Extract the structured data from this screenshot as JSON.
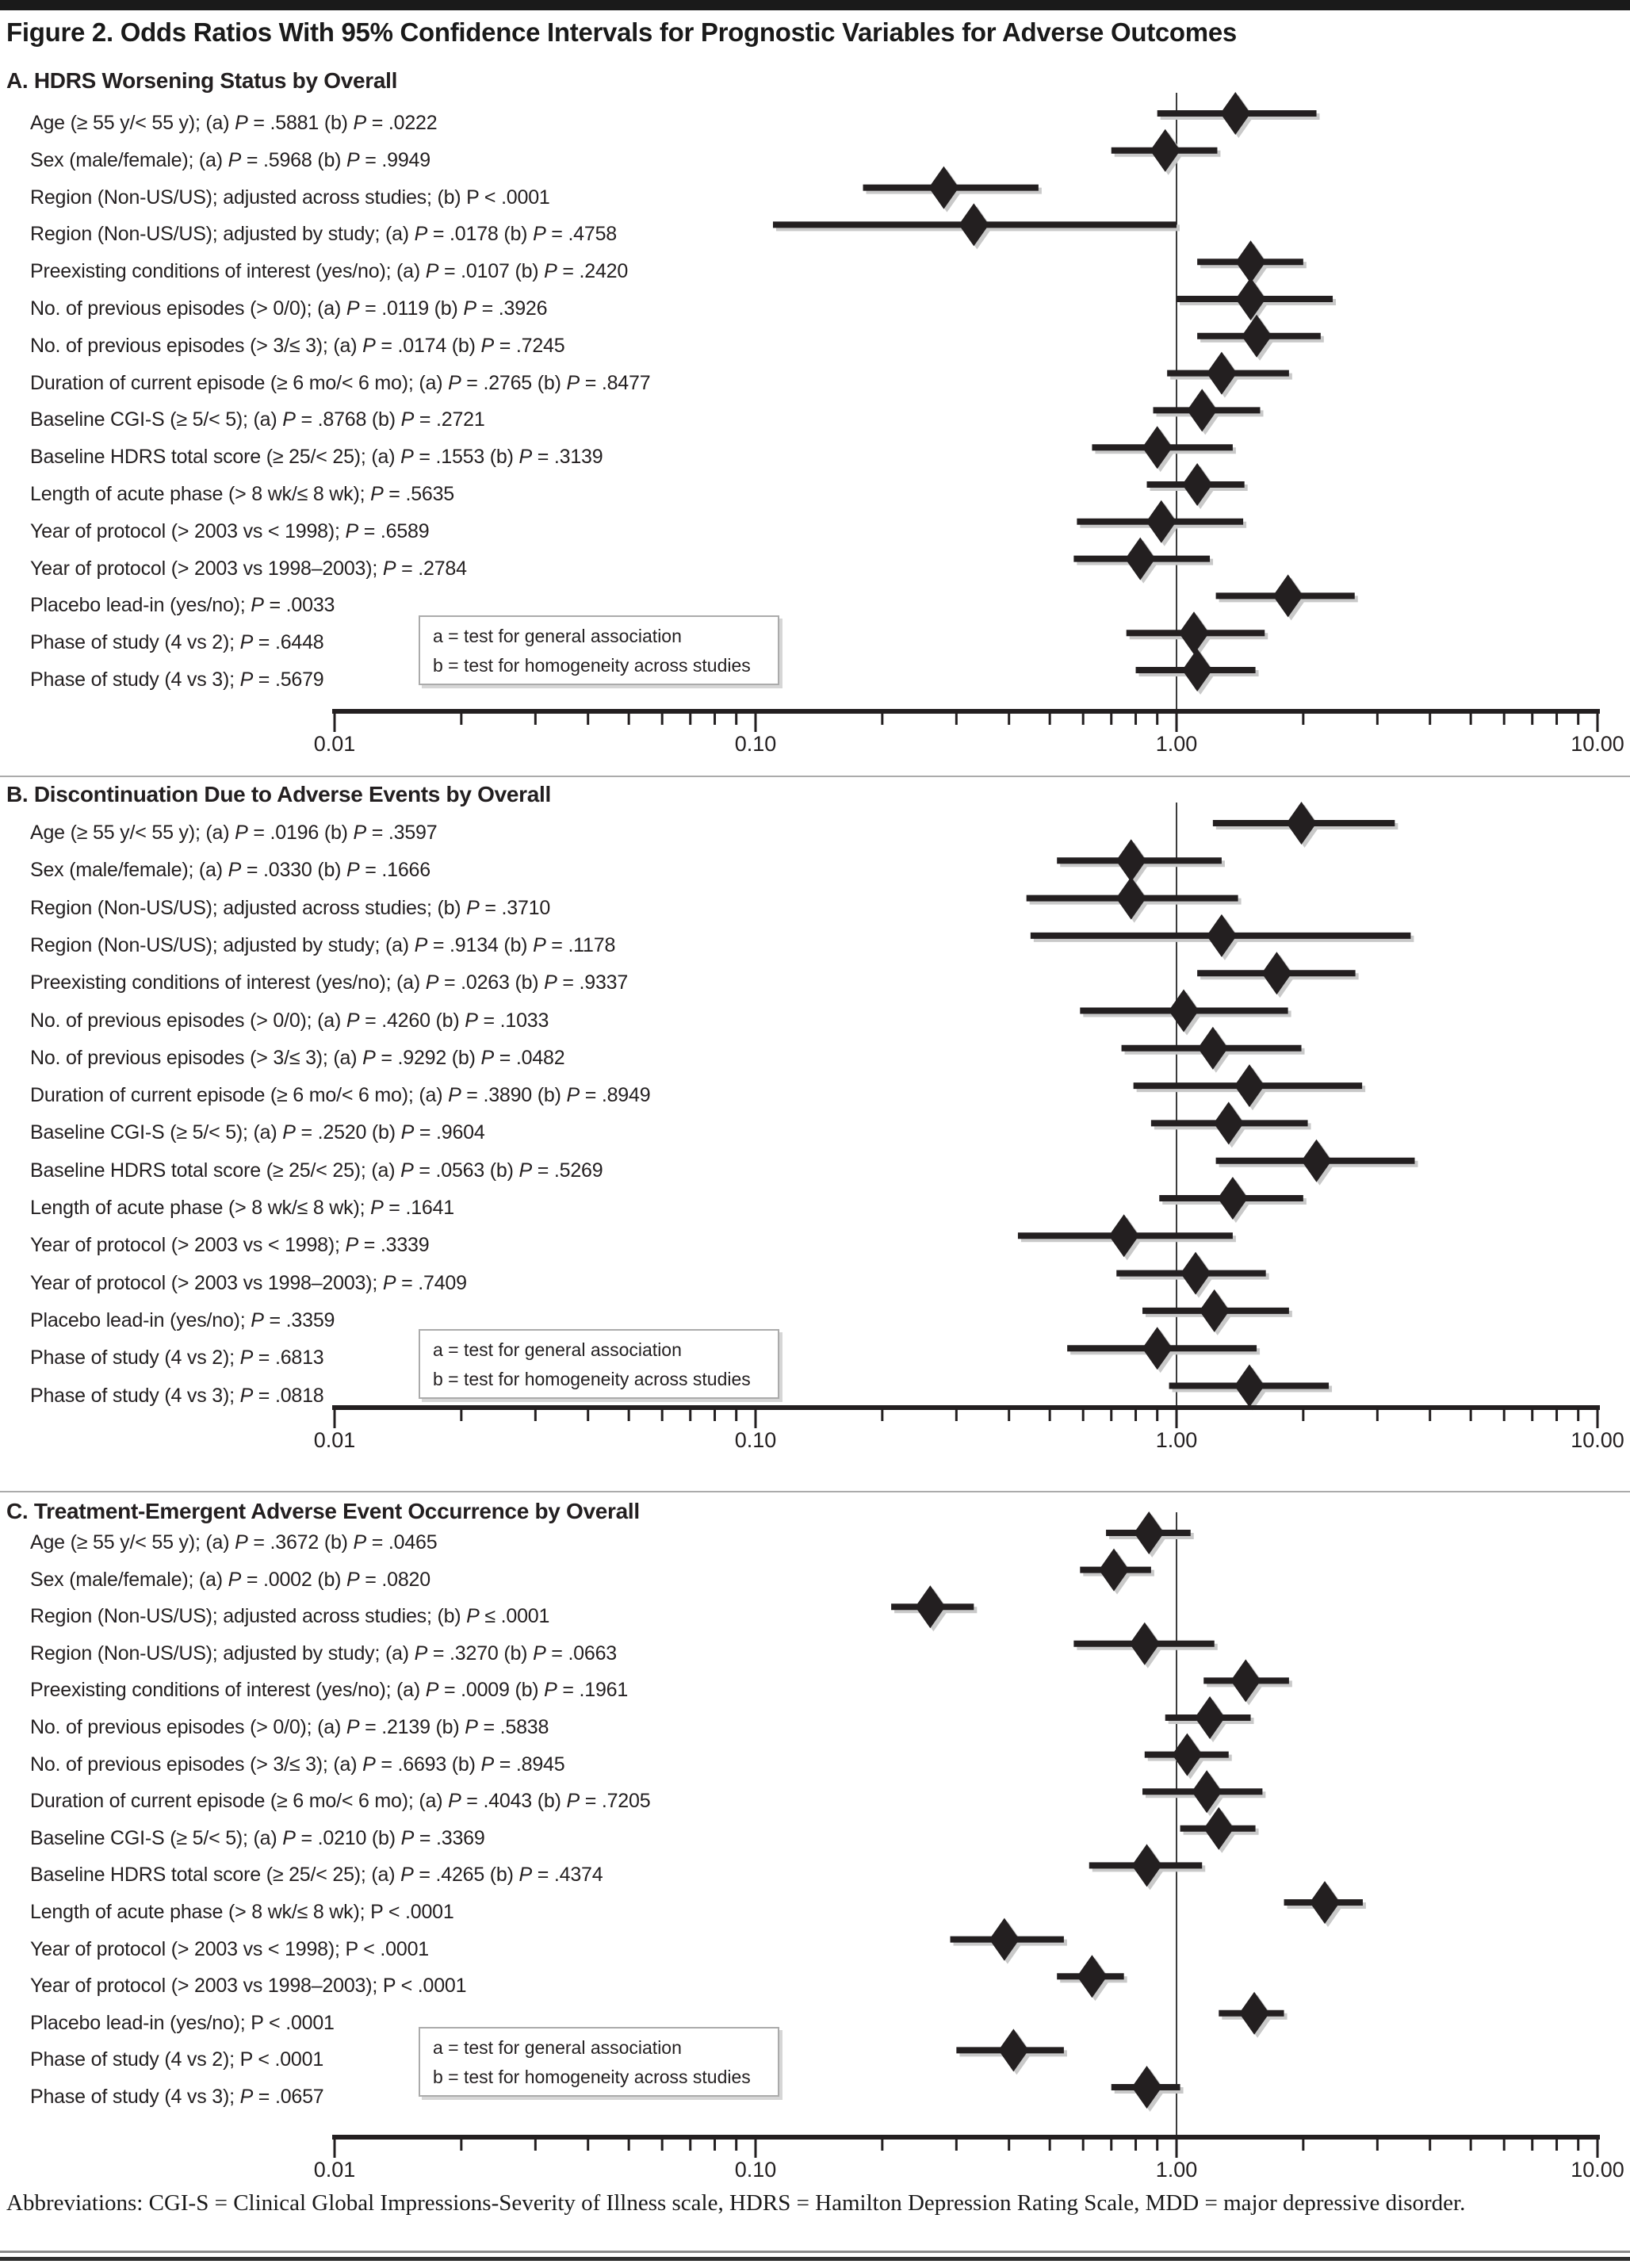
{
  "figure": {
    "title": "Figure 2. Odds Ratios With 95% Confidence Intervals for Prognostic Variables for Adverse Outcomes",
    "footer": "Abbreviations: CGI-S = Clinical Global Impressions-Severity of Illness scale, HDRS = Hamilton Depression Rating Scale, MDD = major depressive disorder."
  },
  "legend": {
    "a": "a = test for general association",
    "b": "b = test for homogeneity across studies"
  },
  "axis": {
    "scale": "log",
    "range": [
      0.01,
      10
    ],
    "tick_labels": [
      "0.01",
      "0.10",
      "1.00",
      "10.00"
    ],
    "tick_values": [
      0.01,
      0.1,
      1,
      10
    ],
    "reference_line": 1.0
  },
  "colors": {
    "marker": "#231f20",
    "ci_line": "#231f20",
    "shadow": "#c9c9c9",
    "reference": "#3c3c3c",
    "divider": "#ababab"
  },
  "chart_data": [
    {
      "type": "scatter",
      "variant": "forest-plot",
      "title": "A. HDRS Worsening Status by Overall",
      "xlabel": "",
      "x_scale": "log",
      "xlim": [
        0.01,
        10
      ],
      "reference_line": 1.0,
      "rows": [
        {
          "label": "Age (≥ 55 y/< 55 y); (a) P = .5881 (b) P = .0222",
          "or": 1.38,
          "ci_low": 0.9,
          "ci_high": 2.15
        },
        {
          "label": "Sex (male/female); (a) P = .5968 (b) P = .9949",
          "or": 0.94,
          "ci_low": 0.7,
          "ci_high": 1.25
        },
        {
          "label": "Region (Non-US/US); adjusted across studies; (b) P < .0001",
          "or": 0.28,
          "ci_low": 0.18,
          "ci_high": 0.47
        },
        {
          "label": "Region (Non-US/US); adjusted by study; (a) P = .0178 (b) P = .4758",
          "or": 0.33,
          "ci_low": 0.11,
          "ci_high": 1.0
        },
        {
          "label": "Preexisting conditions of interest (yes/no); (a) P = .0107 (b) P = .2420",
          "or": 1.5,
          "ci_low": 1.12,
          "ci_high": 2.0
        },
        {
          "label": "No. of previous episodes (> 0/0); (a) P = .0119 (b) P = .3926",
          "or": 1.5,
          "ci_low": 1.0,
          "ci_high": 2.35
        },
        {
          "label": "No. of previous episodes (> 3/≤ 3); (a) P = .0174 (b) P = .7245",
          "or": 1.55,
          "ci_low": 1.12,
          "ci_high": 2.2
        },
        {
          "label": "Duration of current episode (≥ 6 mo/< 6 mo); (a) P = .2765 (b) P = .8477",
          "or": 1.28,
          "ci_low": 0.95,
          "ci_high": 1.85
        },
        {
          "label": "Baseline CGI-S (≥ 5/< 5); (a) P = .8768 (b) P = .2721",
          "or": 1.15,
          "ci_low": 0.88,
          "ci_high": 1.58
        },
        {
          "label": "Baseline HDRS total score (≥ 25/< 25); (a) P = .1553 (b) P = .3139",
          "or": 0.9,
          "ci_low": 0.63,
          "ci_high": 1.36
        },
        {
          "label": "Length of acute phase (> 8 wk/≤ 8 wk); P = .5635",
          "or": 1.12,
          "ci_low": 0.85,
          "ci_high": 1.45
        },
        {
          "label": "Year of protocol (> 2003 vs < 1998); P = .6589",
          "or": 0.92,
          "ci_low": 0.58,
          "ci_high": 1.44
        },
        {
          "label": "Year of protocol (> 2003 vs 1998–2003); P = .2784",
          "or": 0.82,
          "ci_low": 0.57,
          "ci_high": 1.2
        },
        {
          "label": "Placebo lead-in (yes/no); P = .0033",
          "or": 1.84,
          "ci_low": 1.24,
          "ci_high": 2.65
        },
        {
          "label": "Phase of study (4 vs 2); P = .6448",
          "or": 1.1,
          "ci_low": 0.76,
          "ci_high": 1.62
        },
        {
          "label": "Phase of study (4 vs 3); P = .5679",
          "or": 1.12,
          "ci_low": 0.8,
          "ci_high": 1.54
        }
      ]
    },
    {
      "type": "scatter",
      "variant": "forest-plot",
      "title": "B. Discontinuation Due to Adverse Events by Overall",
      "xlabel": "",
      "x_scale": "log",
      "xlim": [
        0.01,
        10
      ],
      "reference_line": 1.0,
      "rows": [
        {
          "label": "Age (≥ 55 y/< 55 y); (a) P = .0196 (b) P = .3597",
          "or": 1.98,
          "ci_low": 1.22,
          "ci_high": 3.3
        },
        {
          "label": "Sex (male/female); (a) P = .0330 (b) P = .1666",
          "or": 0.78,
          "ci_low": 0.52,
          "ci_high": 1.28
        },
        {
          "label": "Region (Non-US/US); adjusted across studies; (b) P = .3710",
          "or": 0.78,
          "ci_low": 0.44,
          "ci_high": 1.4
        },
        {
          "label": "Region (Non-US/US); adjusted by study; (a) P = .9134 (b) P = .1178",
          "or": 1.28,
          "ci_low": 0.45,
          "ci_high": 3.6
        },
        {
          "label": "Preexisting conditions of interest (yes/no); (a) P = .0263 (b) P = .9337",
          "or": 1.73,
          "ci_low": 1.12,
          "ci_high": 2.66
        },
        {
          "label": "No. of previous episodes (> 0/0); (a) P = .4260 (b) P = .1033",
          "or": 1.04,
          "ci_low": 0.59,
          "ci_high": 1.84
        },
        {
          "label": "No. of previous episodes (> 3/≤ 3); (a) P = .9292 (b) P = .0482",
          "or": 1.22,
          "ci_low": 0.74,
          "ci_high": 1.98
        },
        {
          "label": "Duration of current episode (≥ 6 mo/< 6 mo); (a) P = .3890 (b) P = .8949",
          "or": 1.49,
          "ci_low": 0.79,
          "ci_high": 2.76
        },
        {
          "label": "Baseline CGI-S (≥ 5/< 5); (a) P = .2520 (b) P = .9604",
          "or": 1.33,
          "ci_low": 0.87,
          "ci_high": 2.05
        },
        {
          "label": "Baseline HDRS total score (≥ 25/< 25); (a) P = .0563 (b) P = .5269",
          "or": 2.15,
          "ci_low": 1.24,
          "ci_high": 3.68
        },
        {
          "label": "Length of acute phase (> 8 wk/≤ 8 wk); P = .1641",
          "or": 1.36,
          "ci_low": 0.91,
          "ci_high": 2.0
        },
        {
          "label": "Year of protocol (> 2003 vs < 1998); P = .3339",
          "or": 0.75,
          "ci_low": 0.42,
          "ci_high": 1.36
        },
        {
          "label": "Year of protocol (> 2003 vs 1998–2003); P = .7409",
          "or": 1.11,
          "ci_low": 0.72,
          "ci_high": 1.63
        },
        {
          "label": "Placebo lead-in (yes/no); P = .3359",
          "or": 1.23,
          "ci_low": 0.83,
          "ci_high": 1.85
        },
        {
          "label": "Phase of study (4 vs 2); P = .6813",
          "or": 0.9,
          "ci_low": 0.55,
          "ci_high": 1.55
        },
        {
          "label": "Phase of study (4 vs 3); P = .0818",
          "or": 1.49,
          "ci_low": 0.96,
          "ci_high": 2.3
        }
      ]
    },
    {
      "type": "scatter",
      "variant": "forest-plot",
      "title": "C. Treatment-Emergent Adverse Event Occurrence by Overall",
      "xlabel": "",
      "x_scale": "log",
      "xlim": [
        0.01,
        10
      ],
      "reference_line": 1.0,
      "rows": [
        {
          "label": "Age (≥ 55 y/< 55 y); (a) P = .3672 (b) P = .0465",
          "or": 0.86,
          "ci_low": 0.68,
          "ci_high": 1.08
        },
        {
          "label": "Sex (male/female); (a) P = .0002 (b) P = .0820",
          "or": 0.71,
          "ci_low": 0.59,
          "ci_high": 0.87
        },
        {
          "label": "Region (Non-US/US); adjusted across studies; (b) P ≤ .0001",
          "or": 0.26,
          "ci_low": 0.21,
          "ci_high": 0.33
        },
        {
          "label": "Region (Non-US/US); adjusted by study; (a) P = .3270 (b) P = .0663",
          "or": 0.84,
          "ci_low": 0.57,
          "ci_high": 1.23
        },
        {
          "label": "Preexisting conditions of interest (yes/no); (a) P = .0009 (b) P = .1961",
          "or": 1.46,
          "ci_low": 1.16,
          "ci_high": 1.85
        },
        {
          "label": "No. of previous episodes (> 0/0); (a) P = .2139 (b) P = .5838",
          "or": 1.2,
          "ci_low": 0.94,
          "ci_high": 1.5
        },
        {
          "label": "No. of previous episodes (> 3/≤ 3); (a) P = .6693 (b) P = .8945",
          "or": 1.06,
          "ci_low": 0.84,
          "ci_high": 1.33
        },
        {
          "label": "Duration of current episode (≥ 6 mo/< 6 mo); (a) P = .4043 (b) P = .7205",
          "or": 1.18,
          "ci_low": 0.83,
          "ci_high": 1.6
        },
        {
          "label": "Baseline CGI-S (≥ 5/< 5); (a) P = .0210 (b) P = .3369",
          "or": 1.26,
          "ci_low": 1.02,
          "ci_high": 1.54
        },
        {
          "label": "Baseline HDRS total score (≥ 25/< 25); (a) P = .4265 (b) P = .4374",
          "or": 0.85,
          "ci_low": 0.62,
          "ci_high": 1.15
        },
        {
          "label": "Length of acute phase (> 8 wk/≤ 8 wk); P < .0001",
          "or": 2.25,
          "ci_low": 1.8,
          "ci_high": 2.77
        },
        {
          "label": "Year of protocol (> 2003 vs < 1998); P < .0001",
          "or": 0.39,
          "ci_low": 0.29,
          "ci_high": 0.54
        },
        {
          "label": "Year of protocol (> 2003 vs 1998–2003); P < .0001",
          "or": 0.63,
          "ci_low": 0.52,
          "ci_high": 0.75
        },
        {
          "label": "Placebo lead-in (yes/no); P < .0001",
          "or": 1.53,
          "ci_low": 1.26,
          "ci_high": 1.8
        },
        {
          "label": "Phase of study (4 vs 2); P < .0001",
          "or": 0.41,
          "ci_low": 0.3,
          "ci_high": 0.54
        },
        {
          "label": "Phase of study (4 vs 3); P = .0657",
          "or": 0.85,
          "ci_low": 0.7,
          "ci_high": 1.02
        }
      ]
    }
  ]
}
